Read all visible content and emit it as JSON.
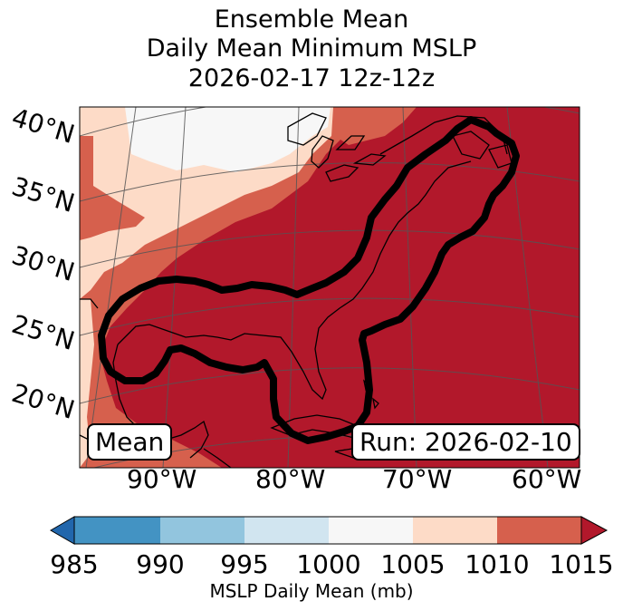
{
  "title": {
    "line1": "Ensemble Mean",
    "line2": "Daily Mean Minimum MSLP",
    "line3": "2026-02-17 12z-12z"
  },
  "map": {
    "lat_labels": [
      "40°N",
      "35°N",
      "30°N",
      "25°N",
      "20°N"
    ],
    "lon_labels": [
      "90°W",
      "80°W",
      "70°W",
      "60°W"
    ],
    "mean_label": "Mean",
    "run_label": "Run: 2026-02-10",
    "contour": "mean low-pressure track outline"
  },
  "colorbar": {
    "ticks": [
      "985",
      "990",
      "995",
      "1000",
      "1005",
      "1010",
      "1015"
    ],
    "label": "MSLP Daily Mean (mb)",
    "colors": {
      "below_985": "#2166ac",
      "985_990": "#4393c3",
      "990_995": "#92c5de",
      "995_1000": "#d1e5f0",
      "1000_1005": "#f7f7f7",
      "1005_1010": "#fddbc7",
      "1010_1015": "#d6604d",
      "above_1015": "#b2182b"
    }
  }
}
